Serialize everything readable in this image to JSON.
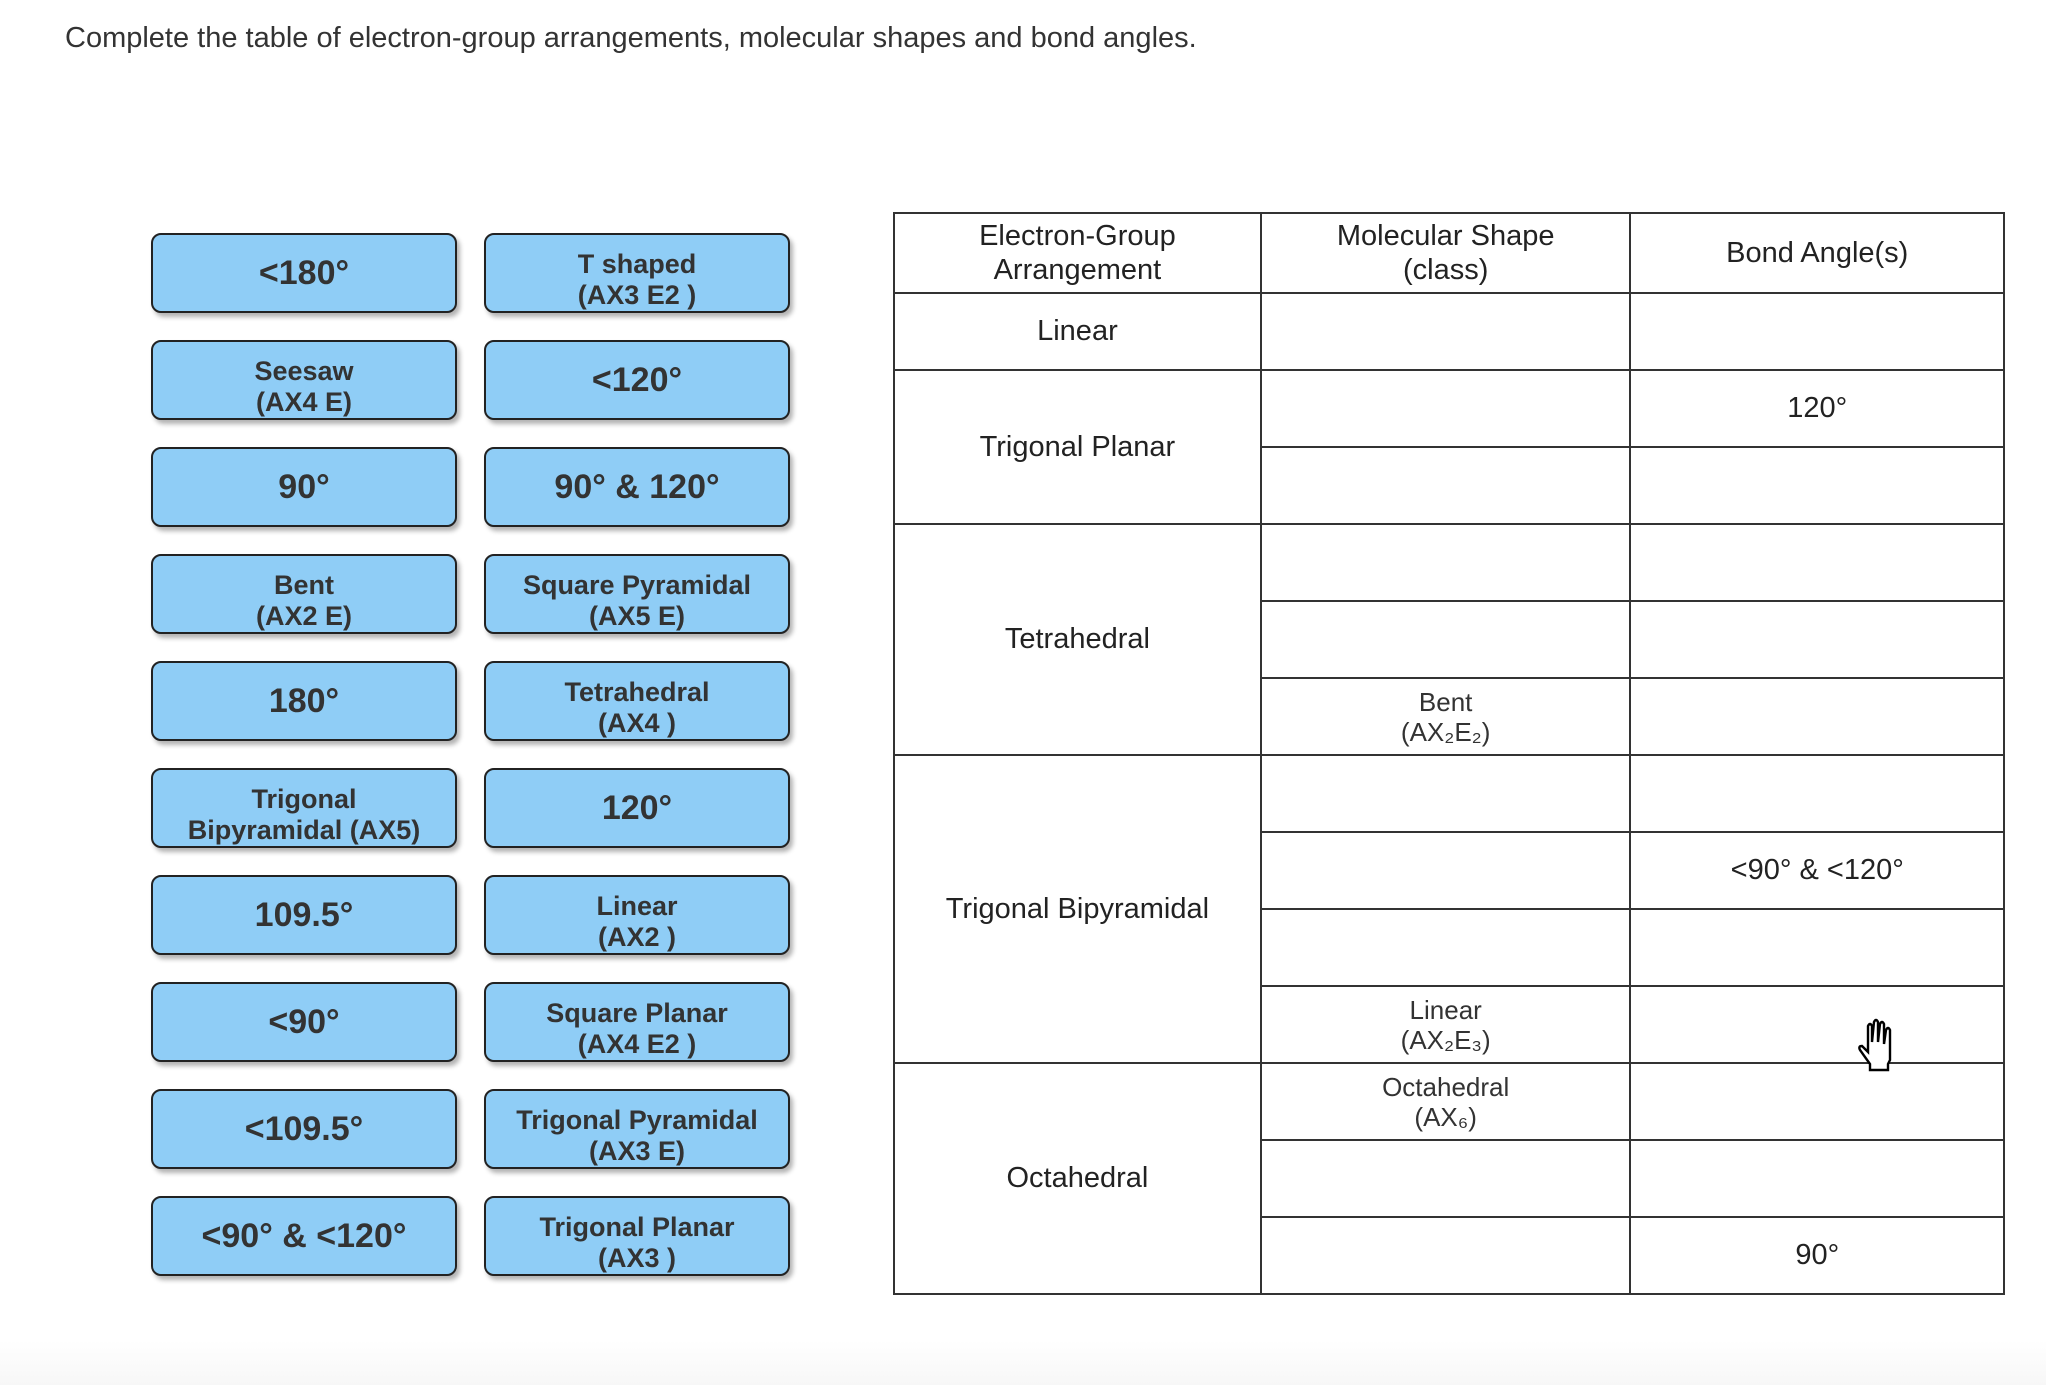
{
  "instruction": "Complete the table of electron-group arrangements, molecular shapes and bond angles.",
  "answer_buttons": {
    "left_column": [
      {
        "lines": [
          "<180°"
        ]
      },
      {
        "lines": [
          "Seesaw",
          "(AX4 E)"
        ]
      },
      {
        "lines": [
          "90°"
        ]
      },
      {
        "lines": [
          "Bent",
          "(AX2 E)"
        ]
      },
      {
        "lines": [
          "180°"
        ]
      },
      {
        "lines": [
          "Trigonal",
          "Bipyramidal (AX5)"
        ]
      },
      {
        "lines": [
          "109.5°"
        ]
      },
      {
        "lines": [
          "<90°"
        ]
      },
      {
        "lines": [
          "<109.5°"
        ]
      },
      {
        "lines": [
          "<90° & <120°"
        ]
      }
    ],
    "right_column": [
      {
        "lines": [
          "T shaped",
          "(AX3 E2 )"
        ]
      },
      {
        "lines": [
          "<120°"
        ]
      },
      {
        "lines": [
          "90° & 120°"
        ]
      },
      {
        "lines": [
          "Square Pyramidal",
          "(AX5 E)"
        ]
      },
      {
        "lines": [
          "Tetrahedral",
          "(AX4 )"
        ]
      },
      {
        "lines": [
          "120°"
        ]
      },
      {
        "lines": [
          "Linear",
          "(AX2 )"
        ]
      },
      {
        "lines": [
          "Square Planar",
          "(AX4 E2 )"
        ]
      },
      {
        "lines": [
          "Trigonal Pyramidal",
          "(AX3 E)"
        ]
      },
      {
        "lines": [
          "Trigonal Planar",
          "(AX3 )"
        ]
      }
    ],
    "color": "#8fcdf6"
  },
  "table": {
    "headers": [
      {
        "lines": [
          "Electron-Group",
          "Arrangement"
        ]
      },
      {
        "lines": [
          "Molecular Shape",
          "(class)"
        ]
      },
      {
        "lines": [
          "Bond Angle(s)"
        ]
      }
    ],
    "groups": [
      {
        "arrangement": "Linear",
        "rows": [
          {
            "shape": [],
            "angle": ""
          }
        ]
      },
      {
        "arrangement": "Trigonal Planar",
        "rows": [
          {
            "shape": [],
            "angle": "120°"
          },
          {
            "shape": [],
            "angle": ""
          }
        ]
      },
      {
        "arrangement": "Tetrahedral",
        "rows": [
          {
            "shape": [],
            "angle": ""
          },
          {
            "shape": [],
            "angle": ""
          },
          {
            "shape": [
              "Bent",
              "(AX₂E₂)"
            ],
            "angle": ""
          }
        ]
      },
      {
        "arrangement": "Trigonal Bipyramidal",
        "rows": [
          {
            "shape": [],
            "angle": ""
          },
          {
            "shape": [],
            "angle": "<90° & <120°"
          },
          {
            "shape": [],
            "angle": ""
          },
          {
            "shape": [
              "Linear",
              "(AX₂E₃)"
            ],
            "angle": ""
          }
        ]
      },
      {
        "arrangement": "Octahedral",
        "rows": [
          {
            "shape": [
              "Octahedral",
              "(AX₆)"
            ],
            "angle": ""
          },
          {
            "shape": [],
            "angle": ""
          },
          {
            "shape": [],
            "angle": "90°"
          }
        ]
      }
    ]
  },
  "cursor": "hand-pointer-icon"
}
